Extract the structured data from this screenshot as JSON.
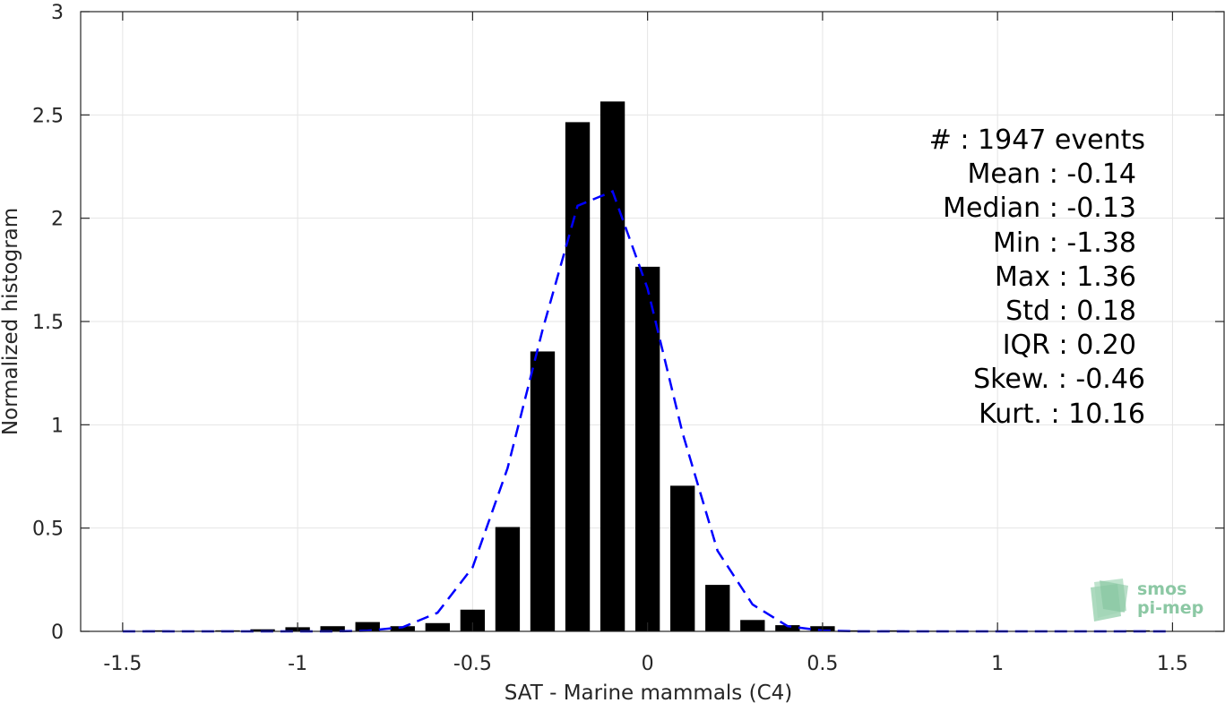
{
  "chart_data": {
    "type": "bar",
    "xlabel": "SAT - Marine mammals (C4)",
    "ylabel": "Normalized histogram",
    "xlim": [
      -1.62,
      1.65
    ],
    "ylim": [
      0,
      3
    ],
    "xticks": [
      -1.5,
      -1,
      -0.5,
      0,
      0.5,
      1,
      1.5
    ],
    "xtick_labels": [
      "-1.5",
      "-1",
      "-0.5",
      "0",
      "0.5",
      "1",
      "1.5"
    ],
    "yticks": [
      0,
      0.5,
      1,
      1.5,
      2,
      2.5,
      3
    ],
    "ytick_labels": [
      "0",
      "0.5",
      "1",
      "1.5",
      "2",
      "2.5",
      "3"
    ],
    "grid": true,
    "bar_color": "#000000",
    "bar_width": 0.07,
    "bars": {
      "x": [
        -1.4,
        -1.3,
        -1.2,
        -1.1,
        -1.0,
        -0.9,
        -0.8,
        -0.7,
        -0.6,
        -0.5,
        -0.4,
        -0.3,
        -0.2,
        -0.1,
        0.0,
        0.1,
        0.2,
        0.3,
        0.4,
        0.5,
        0.6,
        0.7,
        0.8,
        0.9,
        1.0,
        1.1,
        1.2,
        1.3,
        1.4
      ],
      "y": [
        0.005,
        0.003,
        0.005,
        0.01,
        0.02,
        0.025,
        0.045,
        0.025,
        0.04,
        0.105,
        0.505,
        1.355,
        2.465,
        2.565,
        1.765,
        0.705,
        0.225,
        0.055,
        0.03,
        0.025,
        0.005,
        0.005,
        0.003,
        0.002,
        0.002,
        0.002,
        0.002,
        0.002,
        0.005
      ]
    },
    "fit_line": {
      "color": "#0000ff",
      "style": "dashed",
      "x": [
        -1.5,
        -1.4,
        -1.3,
        -1.2,
        -1.1,
        -1.0,
        -0.9,
        -0.8,
        -0.7,
        -0.6,
        -0.5,
        -0.4,
        -0.3,
        -0.2,
        -0.1,
        0.0,
        0.1,
        0.2,
        0.3,
        0.4,
        0.5,
        0.6,
        0.7,
        0.8,
        0.9,
        1.0,
        1.1,
        1.2,
        1.3,
        1.4,
        1.5
      ],
      "y": [
        0,
        0,
        0,
        0,
        0,
        0,
        0,
        0.003,
        0.02,
        0.09,
        0.31,
        0.79,
        1.46,
        2.06,
        2.13,
        1.66,
        0.96,
        0.39,
        0.13,
        0.025,
        0.004,
        0,
        0,
        0,
        0,
        0,
        0,
        0,
        0,
        0,
        0
      ]
    },
    "stats": [
      "#  : 1947 events",
      "Mean : -0.14",
      "Median : -0.13",
      "Min : -1.38",
      "Max : 1.36",
      "Std : 0.18",
      "IQR : 0.20",
      "Skew. : -0.46",
      "Kurt. : 10.16"
    ]
  },
  "logo": {
    "line1": "smos",
    "line2": "pi-mep",
    "color": "#8cc8a4"
  }
}
